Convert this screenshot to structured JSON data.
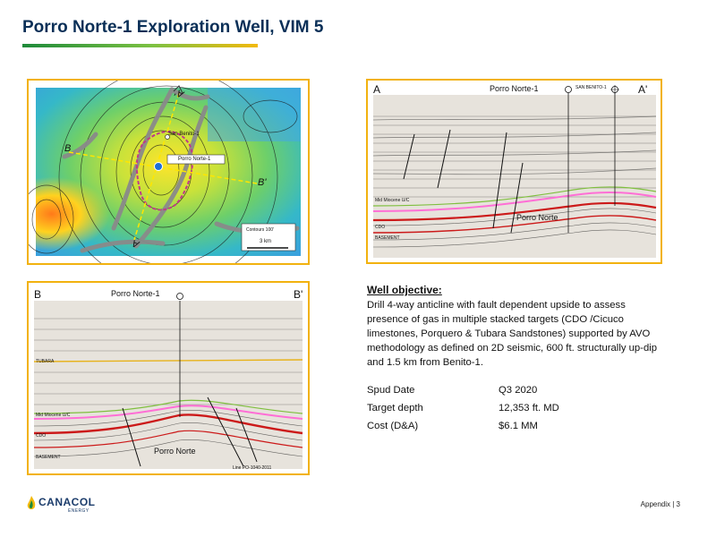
{
  "title": "Porro Norte-1 Exploration Well, VIM 5",
  "map": {
    "label_benito": "San Benito-1",
    "label_porro": "Porro Norte-1",
    "label_b": "B",
    "label_bprime": "B'",
    "label_a": "A",
    "label_aprime": "A'",
    "contours": "Contours 100'",
    "scale": "3 km"
  },
  "section_a": {
    "left_label": "A",
    "right_label": "A'",
    "well_label": "Porro Norte-1",
    "benito_label": "SAN BENITO-1",
    "horizon_miocene": "Mid Miocene U/C",
    "horizon_cdo": "CDO",
    "horizon_basement": "BASEMENT",
    "target": "Porro Norte"
  },
  "section_b": {
    "left_label": "B",
    "right_label": "B'",
    "well_label": "Porro Norte-1",
    "horizon_tubara": "TUBARA",
    "horizon_miocene": "Mid Miocene U/C",
    "horizon_cdo": "CDO",
    "horizon_basement": "BASEMENT",
    "target": "Porro Norte",
    "line": "Line PO-1040-2011"
  },
  "objective": {
    "heading": "Well objective:",
    "text": "Drill 4-way anticline with fault dependent upside to assess presence of gas in multiple stacked targets (CDO /Cicuco limestones, Porquero & Tubara Sandstones) supported by AVO methodology as defined on 2D seismic, 600 ft. structurally up-dip and 1.5 km from Benito-1."
  },
  "facts": [
    {
      "key": "Spud Date",
      "value": "Q3 2020"
    },
    {
      "key": "Target depth",
      "value": "12,353 ft. MD"
    },
    {
      "key": "Cost (D&A)",
      "value": "$6.1 MM"
    }
  ],
  "logo": {
    "name": "CANACOL",
    "sub": "ENERGY"
  },
  "footer": "Appendix | 3",
  "colors": {
    "title": "#0a2f57",
    "panel_border": "#f2b20f",
    "brand_green": "#1d8a3a",
    "brand_yellow": "#f2b90c"
  }
}
